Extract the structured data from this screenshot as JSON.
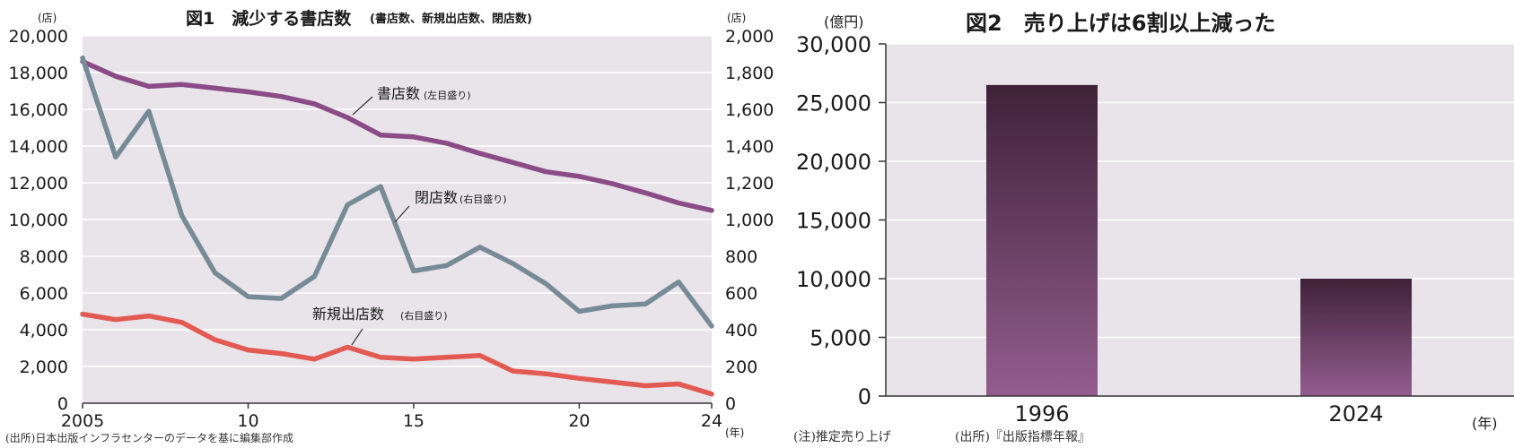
{
  "chart_data": [
    {
      "type": "line",
      "title": "図1　減少する書店数",
      "title_sub": "(書店数、新規出店数、閉店数)",
      "xlabel": "(年)",
      "ylabel_left": "(店)",
      "ylabel_right": "(店)",
      "x": [
        2005,
        2006,
        2007,
        2008,
        2009,
        2010,
        2011,
        2012,
        2013,
        2014,
        2015,
        2016,
        2017,
        2018,
        2019,
        2020,
        2021,
        2022,
        2023,
        2024
      ],
      "x_tick_labels": [
        "2005",
        "10",
        "15",
        "20",
        "24"
      ],
      "x_tick_values": [
        2005,
        2010,
        2015,
        2020,
        2024
      ],
      "ylim_left": [
        0,
        20000
      ],
      "ylim_right": [
        0,
        2000
      ],
      "y_ticks_left": [
        "0",
        "2,000",
        "4,000",
        "6,000",
        "8,000",
        "10,000",
        "12,000",
        "14,000",
        "16,000",
        "18,000",
        "20,000"
      ],
      "y_ticks_right": [
        "0",
        "200",
        "400",
        "600",
        "800",
        "1,000",
        "1,200",
        "1,400",
        "1,600",
        "1,800",
        "2,000"
      ],
      "series": [
        {
          "name": "書店数",
          "axis_note": "(左目盛り)",
          "axis": "left",
          "color": "#8a4b86",
          "values": [
            18600,
            17800,
            17250,
            17350,
            17150,
            16950,
            16700,
            16300,
            15550,
            14600,
            14500,
            14150,
            13600,
            13100,
            12600,
            12350,
            11950,
            11450,
            10900,
            10500
          ]
        },
        {
          "name": "閉店数",
          "axis_note": "(右目盛り)",
          "axis": "right",
          "color": "#778b96",
          "values": [
            1880,
            1340,
            1590,
            1020,
            710,
            580,
            570,
            690,
            1080,
            1180,
            720,
            750,
            850,
            760,
            650,
            500,
            530,
            540,
            660,
            420
          ]
        },
        {
          "name": "新規出店数",
          "axis_note": "(右目盛り)",
          "axis": "right",
          "color": "#e35a52",
          "values": [
            485,
            455,
            475,
            440,
            345,
            290,
            270,
            240,
            305,
            250,
            240,
            250,
            260,
            175,
            160,
            135,
            115,
            95,
            105,
            50
          ]
        }
      ],
      "source": "(出所)日本出版インフラセンターのデータを基に編集部作成"
    },
    {
      "type": "bar",
      "title": "図2　売り上げは6割以上減った",
      "ylabel": "(億円)",
      "xlabel": "(年)",
      "categories": [
        "1996",
        "2024"
      ],
      "values": [
        26500,
        10000
      ],
      "ylim": [
        0,
        30000
      ],
      "y_ticks": [
        "0",
        "5,000",
        "10,000",
        "15,000",
        "20,000",
        "25,000",
        "30,000"
      ],
      "bar_color_top": "#3f2238",
      "bar_color_bottom": "#935d8f",
      "note": "(注)推定売り上げ",
      "source": "(出所)『出版指標年報』"
    }
  ]
}
